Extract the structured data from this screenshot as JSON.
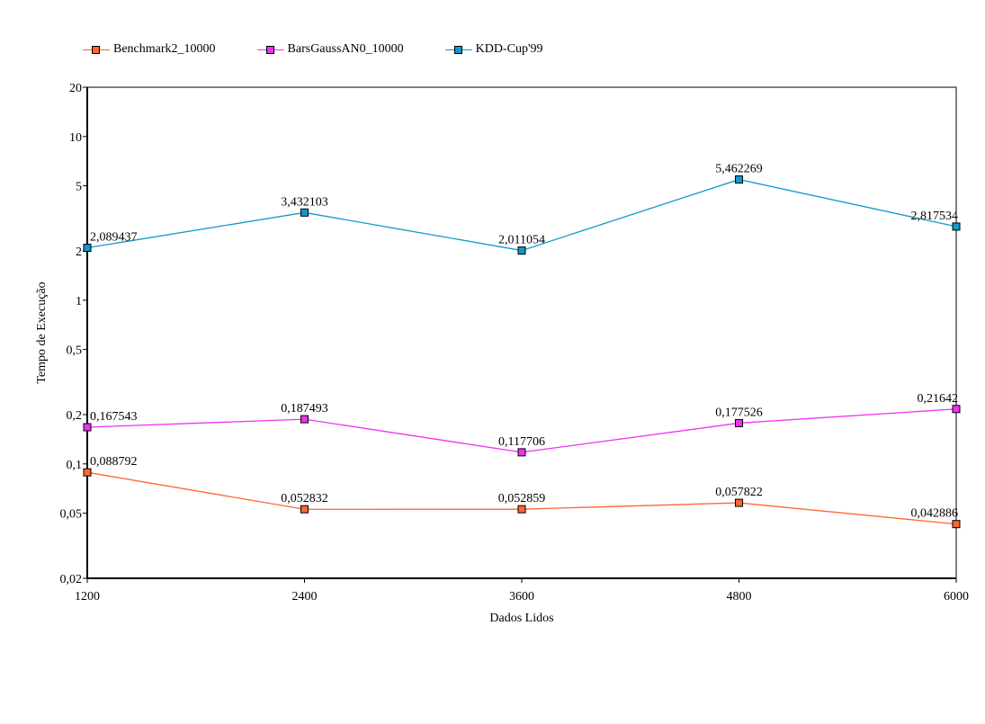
{
  "chart_data": {
    "type": "line",
    "xlabel": "Dados Lidos",
    "ylabel": "Tempo de Execução",
    "x": [
      1200,
      2400,
      3600,
      4800,
      6000
    ],
    "x_tick_labels": [
      "1200",
      "2400",
      "3600",
      "4800",
      "6000"
    ],
    "y_scale": "log",
    "ylim": [
      0.02,
      20
    ],
    "y_ticks": [
      0.02,
      0.05,
      0.1,
      0.2,
      0.5,
      1,
      2,
      5,
      10,
      20
    ],
    "y_tick_labels": [
      "0,02",
      "0,05",
      "0,1",
      "0,2",
      "0,5",
      "1",
      "2",
      "5",
      "10",
      "20"
    ],
    "legend_position": "top-left",
    "grid": false,
    "series": [
      {
        "name": "Benchmark2_10000",
        "color": "#ff6633",
        "values": [
          0.088792,
          0.052832,
          0.052859,
          0.057822,
          0.042886
        ],
        "labels": [
          "0,088792",
          "0,052832",
          "0,052859",
          "0,057822",
          "0,042886"
        ]
      },
      {
        "name": "BarsGaussAN0_10000",
        "color": "#ee33ee",
        "values": [
          0.167543,
          0.187493,
          0.117706,
          0.177526,
          0.21642
        ],
        "labels": [
          "0,167543",
          "0,187493",
          "0,117706",
          "0,177526",
          "0,21642"
        ]
      },
      {
        "name": "KDD-Cup'99",
        "color": "#1199cc",
        "values": [
          2.089437,
          3.432103,
          2.011054,
          5.462269,
          2.817534
        ],
        "labels": [
          "2,089437",
          "3,432103",
          "2,011054",
          "5,462269",
          "2,817534"
        ]
      }
    ]
  }
}
